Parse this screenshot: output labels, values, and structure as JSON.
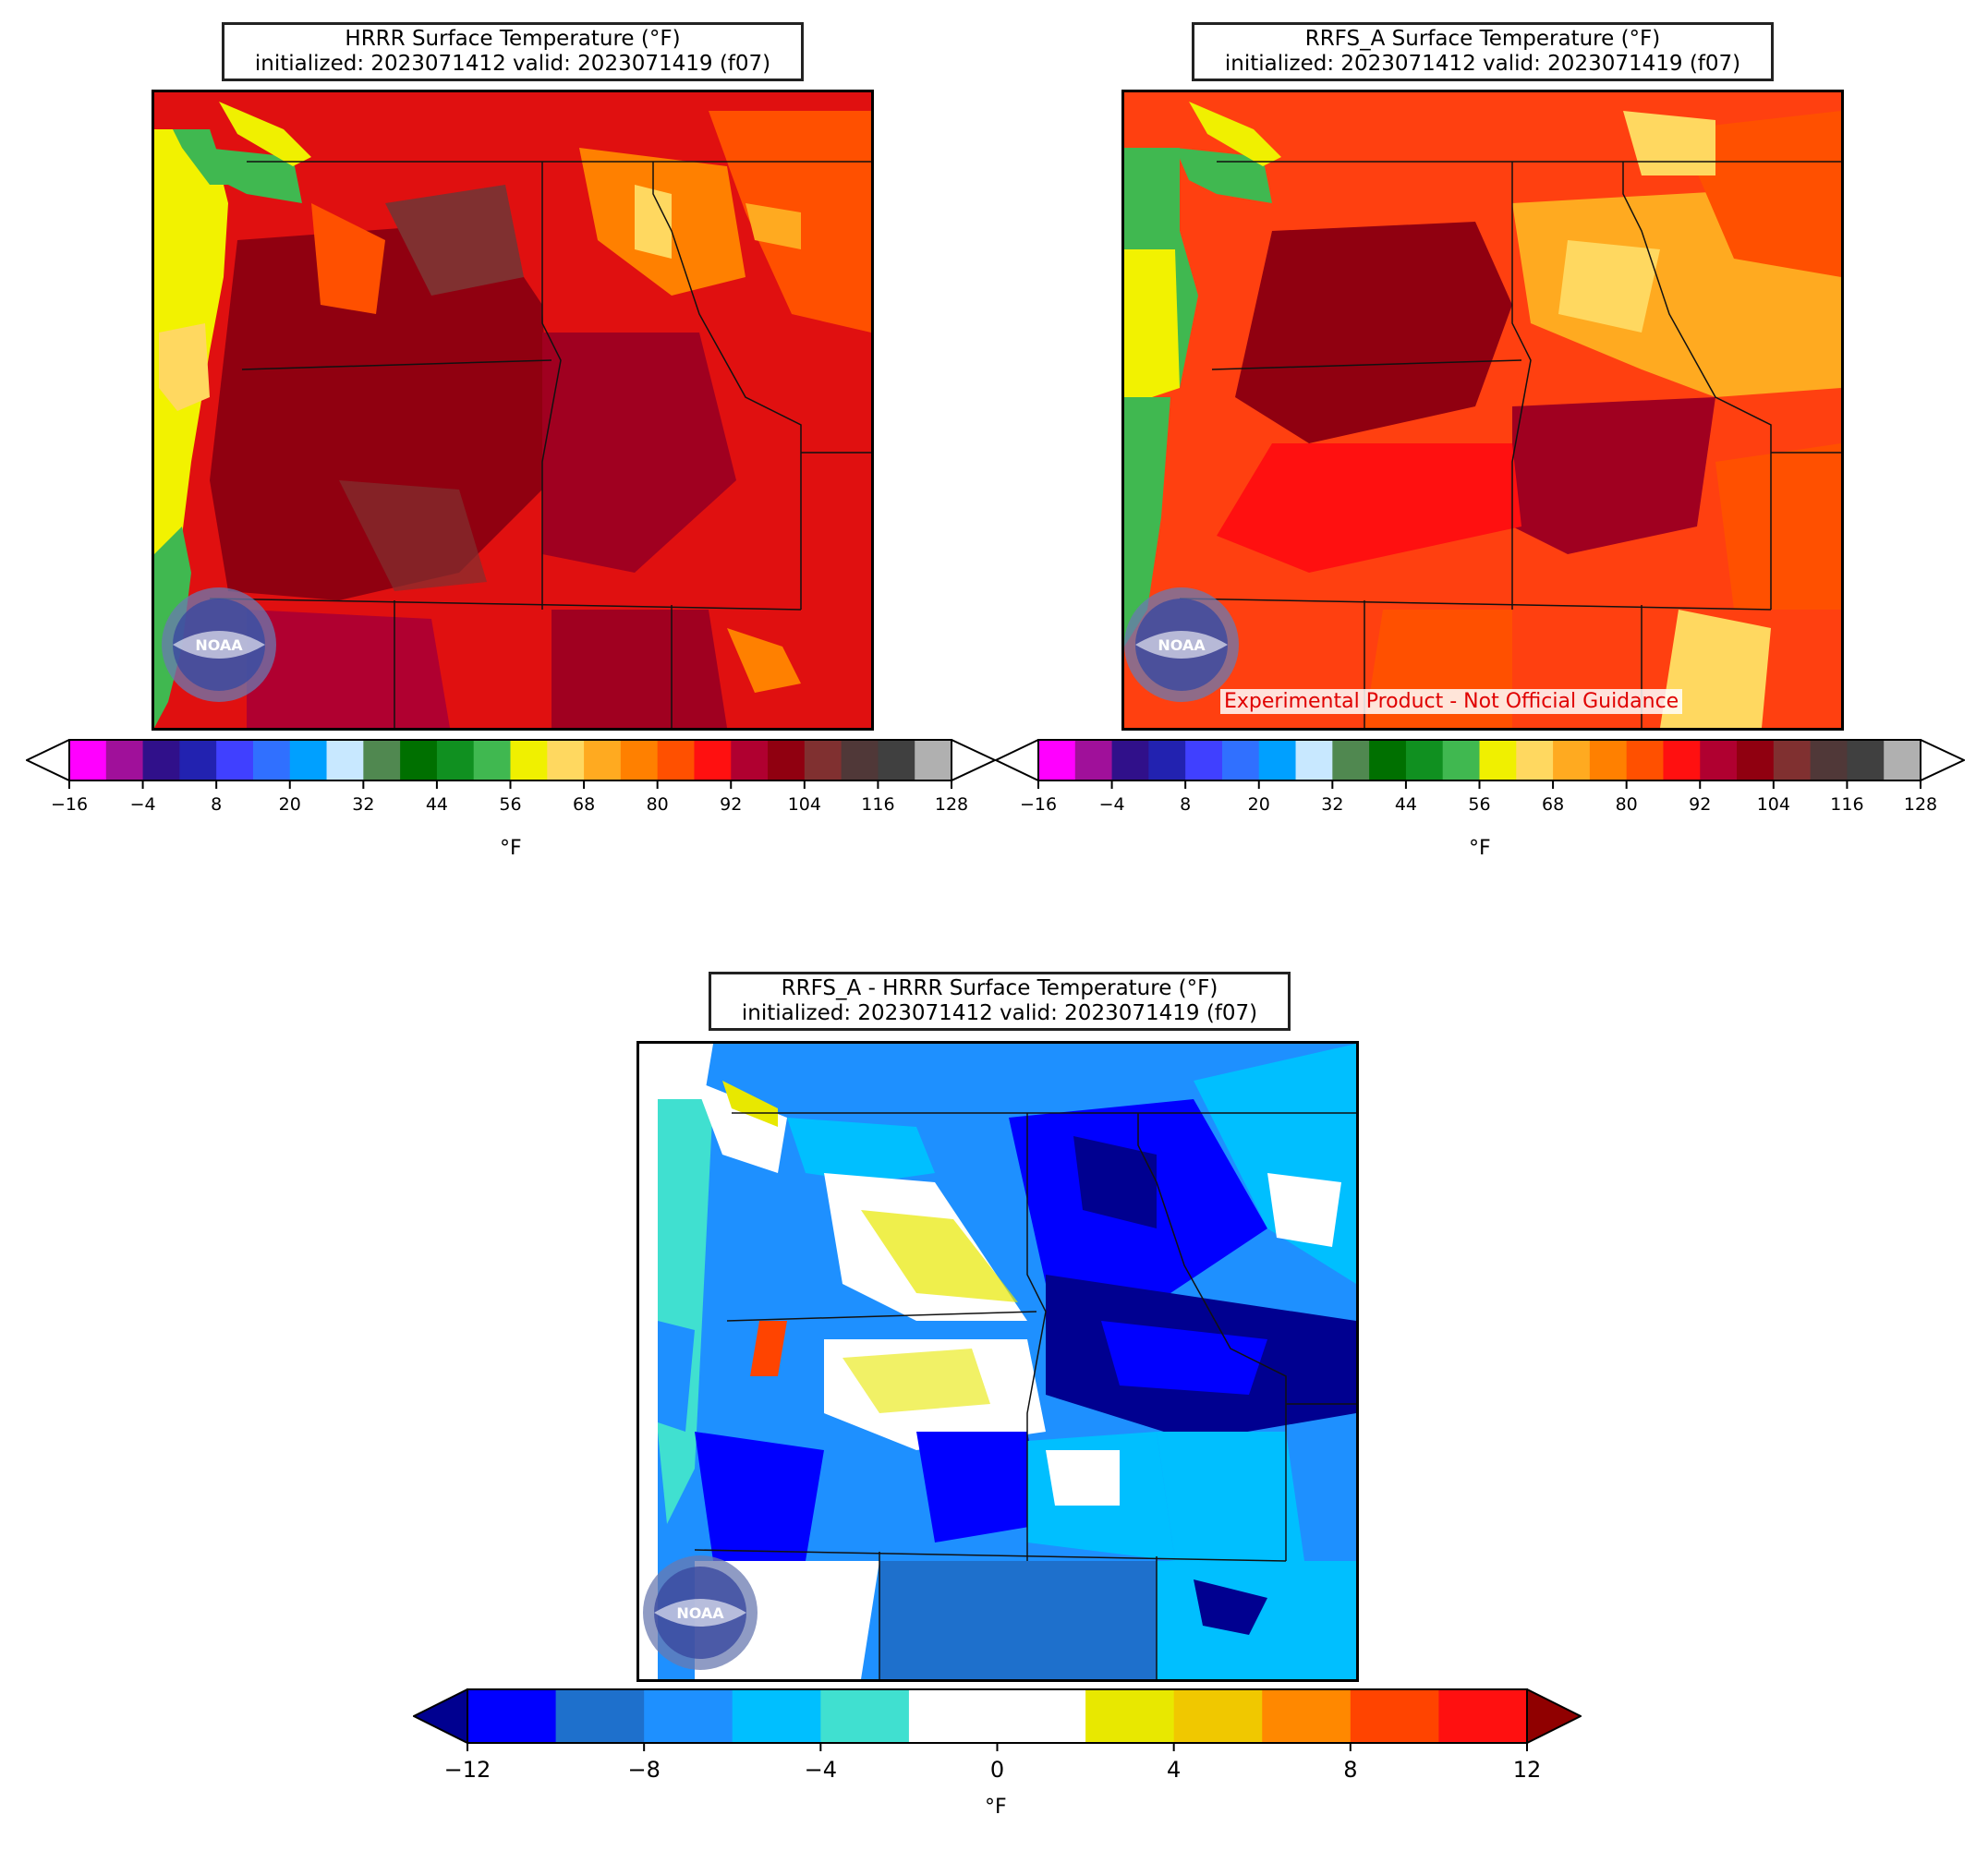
{
  "panels": {
    "hrrr": {
      "title_line1": "HRRR Surface Temperature (°F)",
      "title_line2": "initialized: 2023071412 valid: 2023071419 (f07)"
    },
    "rrfs": {
      "title_line1": "RRFS_A Surface Temperature (°F)",
      "title_line2": "initialized: 2023071412 valid: 2023071419 (f07)",
      "banner": "Experimental Product - Not Official Guidance"
    },
    "diff": {
      "title_line1": "RRFS_A - HRRR Surface Temperature (°F)",
      "title_line2": "initialized: 2023071412 valid: 2023071419 (f07)"
    }
  },
  "logo_text": "NOAA",
  "temp_colorbar": {
    "unit": "°F",
    "ticks": [
      "−16",
      "−4",
      "8",
      "20",
      "32",
      "44",
      "56",
      "68",
      "80",
      "92",
      "104",
      "116",
      "128"
    ],
    "colors": [
      "#ff00ff",
      "#a0109a",
      "#30108a",
      "#2222b0",
      "#4040ff",
      "#3070ff",
      "#00a0ff",
      "#c8e8ff",
      "#508850",
      "#007000",
      "#109020",
      "#40b850",
      "#f0f000",
      "#ffd860",
      "#ffaa20",
      "#ff8000",
      "#ff5000",
      "#ff1010",
      "#b00030",
      "#900010",
      "#803030",
      "#503838",
      "#404040",
      "#b0b0b0"
    ]
  },
  "diff_colorbar": {
    "unit": "°F",
    "ticks": [
      "−12",
      "−8",
      "−4",
      "0",
      "4",
      "8",
      "12"
    ],
    "colors": [
      "#0000ff",
      "#1e70cc",
      "#1e90ff",
      "#00bfff",
      "#40e0d0",
      "#ffffff",
      "#ffffff",
      "#e8e800",
      "#f0c800",
      "#ff8800",
      "#ff4400",
      "#ff1010"
    ],
    "under_color": "#000090",
    "over_color": "#900000"
  }
}
